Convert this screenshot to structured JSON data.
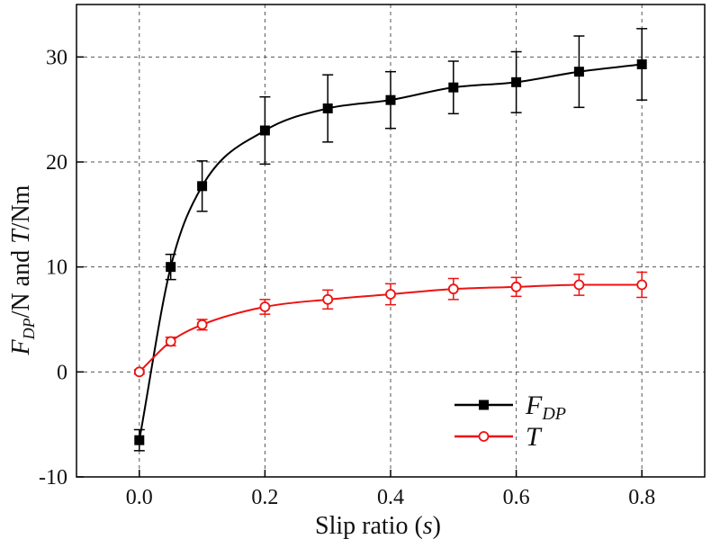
{
  "chart_data": {
    "type": "line",
    "xlabel": "Slip ratio (s)",
    "ylabel": "F_DP/N and T/Nm",
    "xlim": [
      -0.1,
      0.9
    ],
    "ylim": [
      -10,
      35
    ],
    "x_ticks": [
      "0.0",
      "0.2",
      "0.4",
      "0.6",
      "0.8"
    ],
    "y_ticks": [
      "-10",
      "0",
      "10",
      "20",
      "30"
    ],
    "grid": true,
    "legend_position": "bottom-right",
    "x": [
      0.0,
      0.05,
      0.1,
      0.2,
      0.3,
      0.4,
      0.5,
      0.6,
      0.7,
      0.8
    ],
    "series": [
      {
        "name": "FDP",
        "legend_main": "F",
        "legend_sub": "DP",
        "color": "#000000",
        "marker": "filled-square",
        "values": [
          -6.5,
          10.0,
          17.7,
          23.0,
          25.1,
          25.9,
          27.1,
          27.6,
          28.6,
          29.3
        ],
        "errors": [
          1.0,
          1.2,
          2.4,
          3.2,
          3.2,
          2.7,
          2.5,
          2.9,
          3.4,
          3.4
        ]
      },
      {
        "name": "T",
        "legend_main": "T",
        "legend_sub": "",
        "color": "#ee1111",
        "marker": "open-circle",
        "values": [
          0.0,
          2.9,
          4.5,
          6.2,
          6.9,
          7.4,
          7.9,
          8.1,
          8.3,
          8.3
        ],
        "errors": [
          0.2,
          0.4,
          0.5,
          0.7,
          0.9,
          1.0,
          1.0,
          0.9,
          1.0,
          1.2
        ]
      }
    ]
  }
}
